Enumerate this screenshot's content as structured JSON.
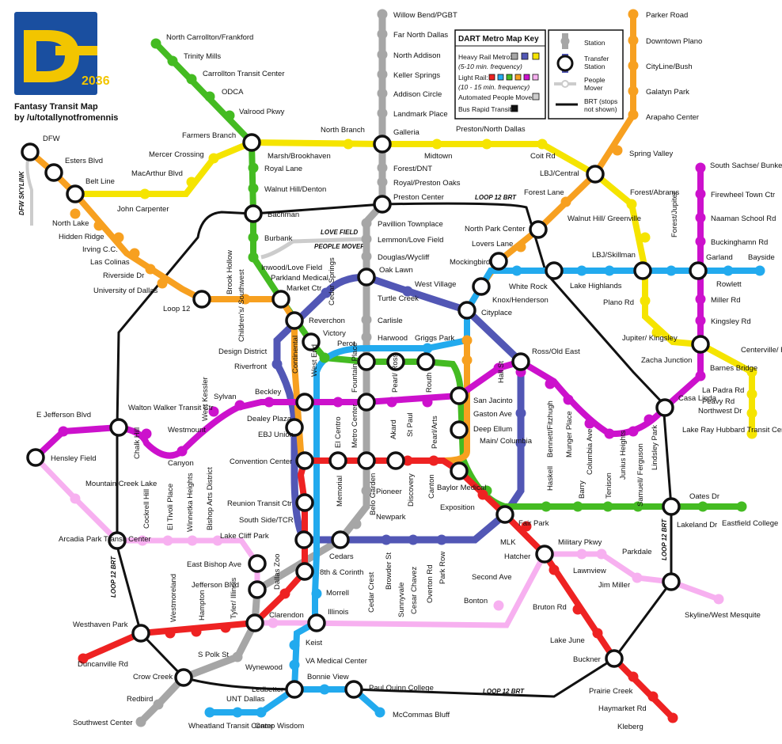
{
  "brand": {
    "logo_text": "2036",
    "title_line1": "Fantasy Transit Map",
    "title_line2": "by /u/totallynotfromennis",
    "colors": {
      "logo_bg": "#1a4fa0",
      "logo_fg": "#f2c500"
    }
  },
  "key": {
    "title": "DART Metro Map Key",
    "heavy_rail": "Heavy Rail Metro:",
    "heavy_freq": "(5-10 min. frequency)",
    "light_rail": "Light Rail:",
    "light_freq": "(10 - 15 min. frequency)",
    "apm": "Automated People Mover:",
    "brt": "Bus Rapid Transit:",
    "station": "Station",
    "transfer": "Transfer Station",
    "people_mover": "People Mover",
    "brt_note": "BRT (stops not shown)"
  },
  "line_colors": {
    "gray": "#a6a6a6",
    "blue_dark": "#5257b5",
    "yellow": "#f5e400",
    "red": "#ee2222",
    "light_blue": "#22aaee",
    "green": "#44bb22",
    "orange": "#f7a020",
    "purple": "#cc11cc",
    "pink": "#f7b0f0",
    "brt": "#111111",
    "apm": "#cccccc"
  },
  "brt_labels": {
    "north": "LOOP 12 BRT",
    "south": "LOOP 12 BRT",
    "west": "LOOP 12 BRT",
    "east": "LOOP 12 BRT"
  },
  "people_mover_label": {
    "line1": "LOVE FIELD",
    "line2": "PEOPLE MOVER"
  },
  "skylink_label": "DFW SKYLINK",
  "stations": {
    "willow_bend": "Willow Bend/PGBT",
    "far_north_dallas": "Far North Dallas",
    "north_addison": "North Addison",
    "keller_springs": "Keller Springs",
    "addison_circle": "Addison Circle",
    "landmark_place": "Landmark Place",
    "galleria": "Galleria",
    "forest_dnt": "Forest/DNT",
    "royal_preston_oaks": "Royal/Preston Oaks",
    "preston_center": "Preston Center",
    "pavillion_townplace": "Pavillion Townplace",
    "lemmon_love_field": "Lemmon/Love Field",
    "douglas_wycliff": "Douglas/Wycliff",
    "oak_lawn": "Oak Lawn",
    "turtle_creek": "Turtle Creek",
    "carlisle": "Carlisle",
    "harwood": "Harwood",
    "fountain_place": "Fountain Place",
    "metro_center": "Metro Center",
    "belo_garden": "Belo Garden",
    "pioneer": "Pioneer",
    "newpark": "Newpark",
    "cedars": "Cedars",
    "north_carrollton": "North Carrollton/Frankford",
    "trinity_mills": "Trinity Mills",
    "carrollton_tc": "Carrollton Transit Center",
    "odca": "ODCA",
    "valwood": "Valrood Pkwy",
    "farmers_branch": "Farmers Branch",
    "royal_lane": "Royal Lane",
    "walnut_hill_denton": "Walnut Hill/Denton",
    "bachman": "Bachman",
    "burbank": "Burbank",
    "inwood": "Inwood/Love Field",
    "parkland": "Parkland Medical",
    "market_ctr": "Market Ctr",
    "reverchon": "Reverchon",
    "victory": "Victory",
    "perot": "Perot",
    "west_end": "West End",
    "design_district": "Design District",
    "riverfront": "Riverfront",
    "cedar_springs": "Cedar Springs",
    "childrens": "Children's/ Southwest",
    "continental": "Continental",
    "west_village": "West Village",
    "griggs_park": "Griggs Park",
    "cityplace": "Cityplace",
    "knox_henderson": "Knox/Henderson",
    "white_rock": "White Rock",
    "mockingbird": "Mockingbird",
    "lovers_lane": "Lovers Lane",
    "north_park": "North Park Center",
    "walnut_hill_greenville": "Walnut Hill/ Greenville",
    "lbj_central": "LBJ/Central",
    "forest_lane": "Forest Lane",
    "spring_valley": "Spring Valley",
    "arapaho": "Arapaho Center",
    "galatyn": "Galatyn Park",
    "cityline": "CityLine/Bush",
    "downtown_plano": "Downtown Plano",
    "parker_road": "Parker Road",
    "marsh": "Marsh/Brookhaven",
    "north_branch": "North Branch",
    "midtown": "Midtown",
    "preston_north_dallas": "Preston/North Dallas",
    "coit": "Coit Rd",
    "forest_abrams": "Forest/Abrams",
    "forest_jupiter": "Forest/Jupiter",
    "plano_rd": "Plano Rd",
    "jupiter_kingsley": "Jupiter/ Kingsley",
    "zacha": "Zacha Junction",
    "centerville": "Centerville/ Ferguson",
    "lbj_skillman": "LBJ/Skillman",
    "lake_highlands": "Lake Highlands",
    "garland": "Garland",
    "bayside": "Bayside",
    "rowlett": "Rowlett",
    "south_sachse": "South Sachse/ Bunker Hill Rd",
    "firewheel": "Firewheel Town Ctr",
    "naaman": "Naaman School Rd",
    "buckingham": "Buckinghamn Rd",
    "miller": "Miller Rd",
    "kingsley": "Kingsley Rd",
    "barnes_bridge": "Barnes Bridge",
    "la_padra": "La Padra Rd",
    "peavy": "Peavy Rd",
    "northwest_dr": "Northwest Dr",
    "casa_linda": "Casa Linda",
    "lake_ray_hubbard": "Lake Ray Hubbard Transit Center",
    "dfw": "DFW",
    "esters": "Esters Blvd",
    "belt_line": "Belt Line",
    "john_carpenter": "John Carpenter",
    "macarthur": "MacArthur Blvd",
    "mercer": "Mercer Crossing",
    "north_lake": "North Lake",
    "hidden_ridge": "Hidden Ridge",
    "irving_cc": "Irving C.C.",
    "las_colinas": "Las Colinas",
    "riverside": "Riverside Dr",
    "university_dallas": "University of Dallas",
    "loop12": "Loop 12",
    "brook_hollow": "Brook Hollow",
    "e_jefferson": "E Jefferson Blvd",
    "hensley": "Hensley Field",
    "walton_walker": "Walton Walker Transit Ctr",
    "chalk_hill": "Chalk Hill",
    "canyon": "Canyon",
    "westmount": "Westmount",
    "west_kessler": "West Kessler",
    "sylvan": "Sylvan",
    "beckley": "Beckley",
    "dealey": "Dealey Plaza",
    "ebj": "EBJ Union",
    "el_centro": "El Centro",
    "akard": "Akard",
    "st_paul": "St Paul",
    "pearl_ross": "Pearl/ Ross",
    "routh": "Routh",
    "san_jacinto": "San Jacinto",
    "pearl_arts": "Pearl/Arts",
    "hall_st": "Hall St",
    "gaston": "Gaston Ave",
    "deep_ellum": "Deep Ellum",
    "main_columbia": "Main/ Columbia",
    "ross_old_east": "Ross/Old East",
    "bennett": "Bennett/Fitzhugh",
    "munger": "Munger Place",
    "columbia_ave": "Columbia Ave",
    "junius": "Junius Heights",
    "lindsley": "Lindsley Park",
    "convention": "Convention Center",
    "memorial": "Memorial",
    "discovery": "Discovery",
    "canton": "Canton",
    "baylor": "Baylor Medical",
    "exposition": "Exposition",
    "haskell": "Haskell",
    "barry": "Barry",
    "tenison": "Tenison",
    "samuell": "Samuell/ Ferguson",
    "fair_park": "Fair Park",
    "lakeland": "Lakeland Dr",
    "oates": "Oates Dr",
    "eastfield": "Eastfield College",
    "mountain_creek": "Mountain Creek Lake",
    "arcadia": "Arcadia Park Transit Center",
    "cockrell": "Cockrell Hill",
    "el_tivoli": "El Tivoli Place",
    "winnetka": "Winnetka Heights",
    "bishop_arts": "Bishop Arts District",
    "reunion": "Reunion Transit Ctr",
    "south_side": "South Side/TCR",
    "lake_cliff": "Lake Cliff Park",
    "east_bishop": "East Bishop Ave",
    "jefferson_blvd": "Jefferson Blvd",
    "dallas_zoo": "Dallas Zoo",
    "eighth_corinth": "8th & Corinth",
    "morrell": "Morrell",
    "illinois": "Illinois",
    "clarendon": "Clarendon",
    "tyler_illinois": "Tyler/ Illinois",
    "hampton": "Hampton",
    "westmoreland": "Westmoreland",
    "westhaven": "Westhaven Park",
    "duncanville": "Duncanville Rd",
    "s_polk": "S Polk St",
    "wynewood": "Wynewood",
    "crow_creek": "Crow Creek",
    "redbird": "Redbird",
    "southwest_center": "Southwest Center",
    "unt_dallas": "UNT Dallas",
    "wheatland": "Wheatland Transit Center",
    "camp_wisdom": "Camp Wisdom",
    "ledbetter": "Ledbetter",
    "bonnie_view": "Bonnie View",
    "paul_quinn": "Paul Quinn College",
    "mccommas": "McCommas Bluff",
    "keist": "Keist",
    "va_medical": "VA Medical Center",
    "cedar_crest": "Cedar Crest",
    "browder": "Browder St",
    "sunnyvale": "Sunnyvale",
    "cesar_chavez": "Cesar Chavez",
    "overton": "Overton Rd",
    "park_row": "Park Row",
    "mlk": "MLK",
    "hatcher": "Hatcher",
    "military": "Military Pkwy",
    "parkdale": "Parkdale",
    "lawnview": "Lawnview",
    "jim_miller": "Jim Miller",
    "second_ave": "Second Ave",
    "bonton": "Bonton",
    "bruton": "Bruton Rd",
    "lake_june": "Lake June",
    "buckner": "Buckner",
    "prairie_creek": "Prairie Creek",
    "haymarket": "Haymarket Rd",
    "kleberg": "Kleberg",
    "skyline": "Skyline/West Mesquite"
  }
}
